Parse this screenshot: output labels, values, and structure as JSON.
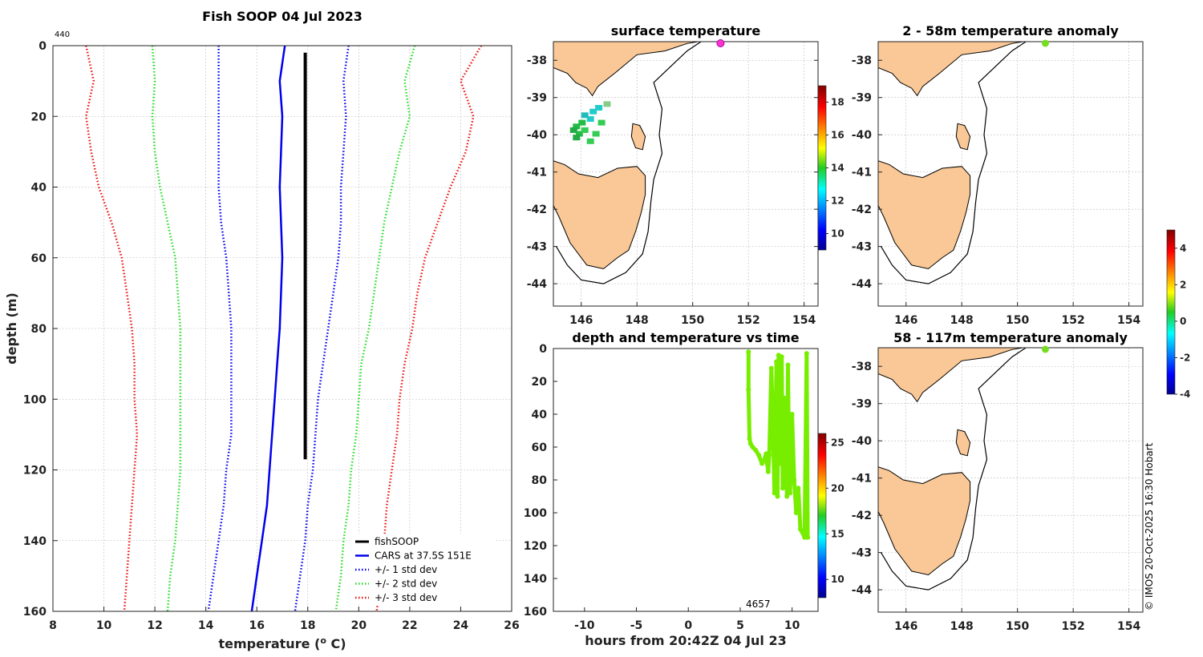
{
  "chart_data": [
    {
      "type": "line",
      "id": "profile",
      "title": "Fish SOOP 04 Jul 2023",
      "corner_label": "440",
      "xlabel": "temperature (° C)",
      "xlabel_prefix": "temperature (",
      "xlabel_sup": "o",
      "xlabel_suffix": " C)",
      "ylabel": "depth (m)",
      "xlim": [
        8,
        26
      ],
      "ylim": [
        0,
        160
      ],
      "xticks": [
        "8",
        "10",
        "12",
        "14",
        "16",
        "18",
        "20",
        "22",
        "24",
        "26"
      ],
      "yticks": [
        "0",
        "20",
        "40",
        "60",
        "80",
        "100",
        "120",
        "140",
        "160"
      ],
      "series": [
        {
          "name": "fishSOOP",
          "color": "#000000",
          "style": "solid",
          "width": 4,
          "depth": [
            2,
            20,
            40,
            60,
            80,
            100,
            117
          ],
          "temp": [
            17.9,
            17.9,
            17.9,
            17.9,
            17.9,
            17.9,
            17.9
          ]
        },
        {
          "name": "CARS at 37.5S 151E",
          "color": "#0000ee",
          "style": "solid",
          "width": 2.5,
          "depth": [
            0,
            10,
            20,
            30,
            40,
            50,
            60,
            70,
            80,
            90,
            100,
            110,
            120,
            130,
            140,
            150,
            160
          ],
          "temp": [
            17.1,
            16.9,
            17.0,
            16.95,
            16.9,
            16.95,
            17.0,
            16.95,
            16.9,
            16.8,
            16.7,
            16.6,
            16.5,
            16.4,
            16.2,
            16.0,
            15.8
          ]
        },
        {
          "name": "+/- 1 std dev",
          "color": "#0000ee",
          "style": "dotted",
          "width": 2,
          "depth": [
            0,
            10,
            20,
            30,
            40,
            50,
            60,
            70,
            80,
            90,
            100,
            110,
            120,
            130,
            140,
            150,
            160
          ],
          "temp": [
            14.5,
            14.5,
            14.5,
            14.5,
            14.5,
            14.6,
            14.8,
            14.9,
            15.0,
            15.0,
            15.0,
            15.0,
            14.8,
            14.7,
            14.5,
            14.3,
            14.1
          ]
        },
        {
          "name": "+/- 1 std dev",
          "color": "#0000ee",
          "style": "dotted",
          "width": 2,
          "depth": [
            0,
            10,
            20,
            30,
            40,
            50,
            60,
            70,
            80,
            90,
            100,
            110,
            120,
            130,
            140,
            150,
            160
          ],
          "temp": [
            19.6,
            19.4,
            19.5,
            19.4,
            19.3,
            19.3,
            19.2,
            19.0,
            18.8,
            18.6,
            18.4,
            18.3,
            18.2,
            18.0,
            17.9,
            17.7,
            17.5
          ]
        },
        {
          "name": "+/- 2 std dev",
          "color": "#22dd22",
          "style": "dotted",
          "width": 2,
          "depth": [
            0,
            10,
            20,
            30,
            40,
            50,
            60,
            70,
            80,
            90,
            100,
            110,
            120,
            130,
            140,
            150,
            160
          ],
          "temp": [
            11.9,
            12.0,
            11.9,
            12.0,
            12.2,
            12.5,
            12.8,
            12.9,
            13.0,
            13.0,
            13.0,
            13.0,
            13.0,
            12.9,
            12.8,
            12.6,
            12.5
          ]
        },
        {
          "name": "+/- 2 std dev",
          "color": "#22dd22",
          "style": "dotted",
          "width": 2,
          "depth": [
            0,
            10,
            20,
            30,
            40,
            50,
            60,
            70,
            80,
            90,
            100,
            110,
            120,
            130,
            140,
            150,
            160
          ],
          "temp": [
            22.2,
            21.8,
            22.0,
            21.6,
            21.3,
            21.0,
            20.8,
            20.6,
            20.4,
            20.1,
            20.0,
            19.9,
            19.7,
            19.6,
            19.4,
            19.3,
            19.1
          ]
        },
        {
          "name": "+/- 3 std dev",
          "color": "#ee1111",
          "style": "dotted",
          "width": 2,
          "depth": [
            0,
            10,
            20,
            30,
            40,
            50,
            60,
            70,
            80,
            90,
            100,
            110,
            120,
            130,
            140,
            150,
            160
          ],
          "temp": [
            9.3,
            9.6,
            9.3,
            9.5,
            9.8,
            10.3,
            10.7,
            10.9,
            11.1,
            11.2,
            11.2,
            11.3,
            11.2,
            11.1,
            11.0,
            10.9,
            10.8
          ]
        },
        {
          "name": "+/- 3 std dev",
          "color": "#ee1111",
          "style": "dotted",
          "width": 2,
          "depth": [
            0,
            10,
            20,
            30,
            40,
            50,
            60,
            70,
            80,
            90,
            100,
            110,
            120,
            130,
            140,
            150,
            160
          ],
          "temp": [
            24.8,
            24.0,
            24.5,
            24.2,
            23.6,
            23.1,
            22.6,
            22.3,
            22.1,
            21.8,
            21.6,
            21.5,
            21.3,
            21.1,
            21.0,
            20.9,
            20.7
          ]
        }
      ],
      "legend": [
        "fishSOOP",
        "CARS at 37.5S 151E",
        "+/- 1 std dev",
        "+/- 2 std dev",
        "+/- 3 std dev"
      ],
      "legend_position": "bottom-right"
    },
    {
      "type": "map",
      "id": "surface",
      "title": "surface temperature",
      "xlim": [
        145,
        154.5
      ],
      "ylim": [
        -44.6,
        -37.5
      ],
      "xticks": [
        "146",
        "148",
        "150",
        "152",
        "154"
      ],
      "yticks": [
        "-38",
        "-39",
        "-40",
        "-41",
        "-42",
        "-43",
        "-44"
      ],
      "colorbar": {
        "range": [
          9,
          19
        ],
        "ticks": [
          "10",
          "12",
          "14",
          "16",
          "18"
        ]
      },
      "marker": {
        "lon": 151.0,
        "lat": -37.5,
        "color": "#ff33cc"
      }
    },
    {
      "type": "map",
      "id": "anom1",
      "title": "2 - 58m temperature anomaly",
      "xlim": [
        145,
        154.5
      ],
      "ylim": [
        -44.6,
        -37.5
      ],
      "xticks": [
        "146",
        "148",
        "150",
        "152",
        "154"
      ],
      "yticks": [
        "-38",
        "-39",
        "-40",
        "-41",
        "-42",
        "-43",
        "-44"
      ],
      "marker": {
        "lon": 151.0,
        "lat": -37.5,
        "color": "#77dd22"
      }
    },
    {
      "type": "map",
      "id": "anom2",
      "title": "58 - 117m temperature anomaly",
      "xlim": [
        145,
        154.5
      ],
      "ylim": [
        -44.6,
        -37.5
      ],
      "xticks": [
        "146",
        "148",
        "150",
        "152",
        "154"
      ],
      "yticks": [
        "-38",
        "-39",
        "-40",
        "-41",
        "-42",
        "-43",
        "-44"
      ],
      "marker": {
        "lon": 151.0,
        "lat": -37.5,
        "color": "#77dd22"
      }
    },
    {
      "type": "scatter",
      "id": "timeseries",
      "title": "depth and temperature vs time",
      "xlabel": "hours from 20:42Z 04 Jul 23",
      "xlim": [
        -13,
        12.5
      ],
      "ylim": [
        0,
        160
      ],
      "xticks": [
        "-10",
        "-5",
        "0",
        "5",
        "10"
      ],
      "yticks": [
        "0",
        "20",
        "40",
        "60",
        "80",
        "100",
        "120",
        "140",
        "160"
      ],
      "annotation": "4657",
      "colorbar": {
        "range": [
          8,
          26
        ],
        "ticks": [
          "10",
          "15",
          "20",
          "25"
        ]
      },
      "point_color": "#77ee00",
      "time": [
        5.8,
        5.8,
        5.9,
        6.0,
        6.2,
        6.5,
        6.8,
        7.1,
        7.3,
        7.5,
        7.6,
        7.7,
        7.8,
        8.0,
        8.2,
        8.3,
        8.4,
        8.5,
        8.6,
        8.7,
        8.8,
        8.9,
        9.0,
        9.1,
        9.2,
        9.3,
        9.4,
        9.5,
        9.6,
        9.7,
        9.8,
        10.0,
        10.2,
        10.4,
        10.6,
        10.8,
        11.0,
        11.2,
        11.4,
        11.5
      ],
      "depth": [
        2,
        25,
        55,
        58,
        60,
        62,
        65,
        70,
        68,
        64,
        70,
        75,
        65,
        12,
        60,
        88,
        50,
        8,
        90,
        4,
        40,
        70,
        5,
        85,
        30,
        78,
        45,
        90,
        10,
        70,
        88,
        40,
        80,
        100,
        85,
        110,
        112,
        115,
        3,
        115
      ]
    },
    {
      "type": "colorbar",
      "id": "anomaly_colorbar",
      "range": [
        -4,
        5
      ],
      "ticks": [
        "4",
        "2",
        "0",
        "-2",
        "-4"
      ]
    }
  ],
  "credit": "© IMOS 20-Oct-2025 16:30 Hobart"
}
